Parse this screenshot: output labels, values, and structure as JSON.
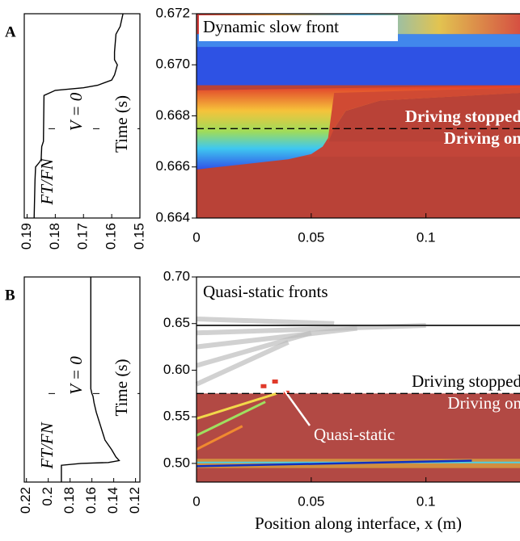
{
  "chart_data": [
    {
      "type": "line",
      "label": "A",
      "xlabel": "FT/FN",
      "ylabel": "Time (s)",
      "annotation": "V = 0",
      "xlim": [
        0.191,
        0.15
      ],
      "xticks": [
        0.19,
        0.18,
        0.17,
        0.16,
        0.15
      ],
      "ylim": [
        0.664,
        0.672
      ],
      "yticks": [
        0.664,
        0.666,
        0.668,
        {
          "value": 0.67,
          "label": "0.670"
        },
        0.672
      ],
      "color": "#000000",
      "x": [
        0.664,
        0.6655,
        0.666,
        0.6662,
        0.6663,
        0.6668,
        0.667,
        0.6688,
        0.669,
        0.6691,
        0.6692,
        0.6694,
        0.6696,
        0.6698,
        0.67,
        0.6702,
        0.6705,
        0.6712,
        0.6715,
        0.672
      ],
      "values": [
        0.1875,
        0.1872,
        0.187,
        0.1855,
        0.185,
        0.1848,
        0.1842,
        0.184,
        0.18,
        0.17,
        0.165,
        0.16,
        0.159,
        0.1585,
        0.158,
        0.159,
        0.159,
        0.1585,
        0.157,
        0.156
      ]
    },
    {
      "type": "heatmap",
      "panel": "A",
      "xlim": [
        0,
        0.141
      ],
      "xticks": [
        0,
        0.05,
        0.1
      ],
      "ylim": [
        0.664,
        0.672
      ],
      "stop_time": 0.6675,
      "annotations": [
        "Dynamic slow front",
        "Driving stopped",
        "Driving on"
      ]
    },
    {
      "type": "line",
      "label": "B",
      "xlabel": "FT/FN",
      "ylabel": "Time (s)",
      "annotation": "V = 0",
      "xlim": [
        0.222,
        0.116
      ],
      "xticks": [
        0.22,
        0.2,
        0.18,
        0.16,
        0.14,
        0.12
      ],
      "ylim": [
        0.48,
        0.7
      ],
      "yticks": [
        {
          "value": 0.5,
          "label": "0.50"
        },
        0.55,
        {
          "value": 0.6,
          "label": "0.60"
        },
        0.65,
        {
          "value": 0.7,
          "label": "0.70"
        }
      ],
      "color": "#000000",
      "x": [
        0.48,
        0.49,
        0.498,
        0.5,
        0.501,
        0.503,
        0.507,
        0.515,
        0.525,
        0.54,
        0.555,
        0.565,
        0.572,
        0.575,
        0.58,
        0.7
      ],
      "values": [
        0.188,
        0.188,
        0.188,
        0.17,
        0.145,
        0.135,
        0.138,
        0.142,
        0.148,
        0.152,
        0.156,
        0.158,
        0.159,
        0.16,
        0.161,
        0.161
      ]
    },
    {
      "type": "heatmap",
      "panel": "B",
      "xlabel": "Position along interface, x (m)",
      "xlim": [
        0,
        0.141
      ],
      "xticks": [
        0,
        0.05,
        0.1
      ],
      "ylim": [
        0.48,
        0.7
      ],
      "stop_time": 0.575,
      "annotations": [
        "Quasi-static fronts",
        "Driving stopped",
        "Driving on",
        "Quasi-static"
      ]
    }
  ]
}
